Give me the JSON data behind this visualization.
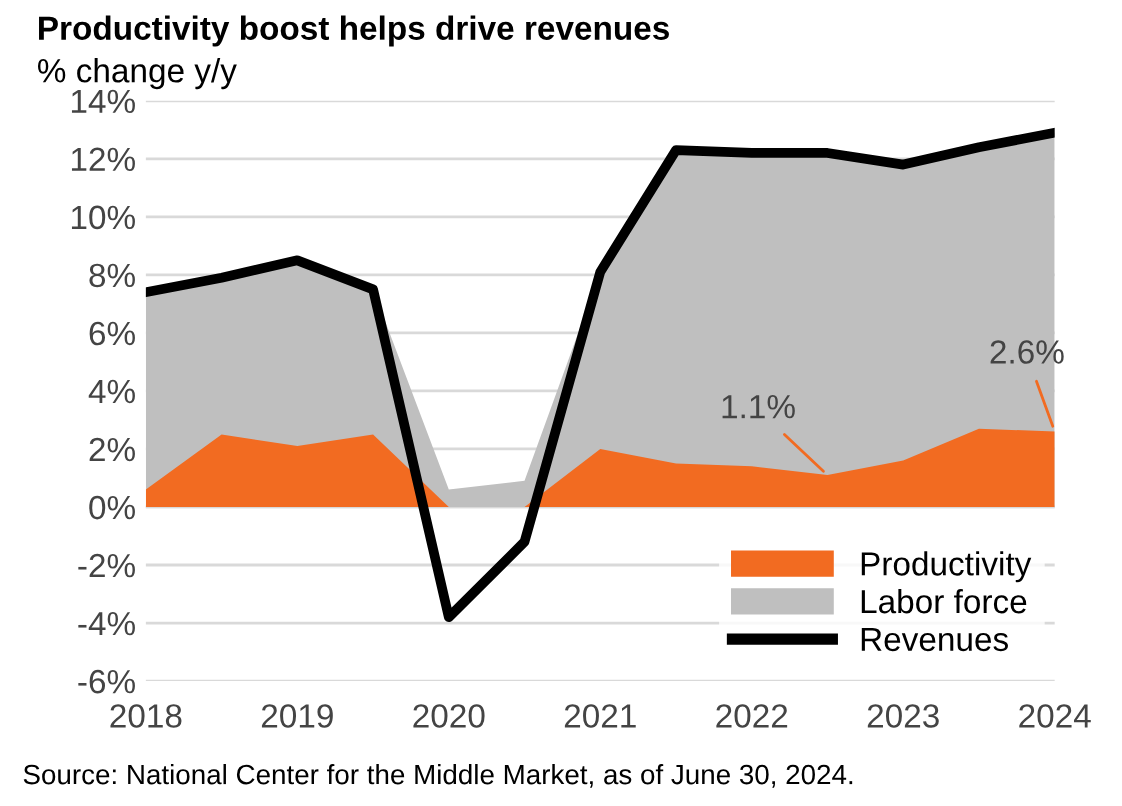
{
  "chart_data": {
    "type": "area",
    "title": "Productivity boost helps drive revenues",
    "ylabel": "% change y/y",
    "x": [
      2018,
      2018.5,
      2019,
      2019.5,
      2020,
      2020.5,
      2021,
      2021.5,
      2022,
      2022.5,
      2023,
      2023.5,
      2024
    ],
    "series": [
      {
        "name": "Productivity",
        "color": "#f26b21",
        "values": [
          0.6,
          2.5,
          2.1,
          2.5,
          0,
          0,
          2.0,
          1.5,
          1.4,
          1.1,
          1.6,
          2.7,
          2.6
        ]
      },
      {
        "name": "Labor force",
        "color": "#bfbfbf",
        "values": [
          7.4,
          7.9,
          8.5,
          7.5,
          0.6,
          0.9,
          8.1,
          12.3,
          12.2,
          12.2,
          11.8,
          12.4,
          12.9
        ]
      },
      {
        "name": "Revenues",
        "type": "line",
        "color": "#000000",
        "values": [
          7.4,
          7.9,
          8.5,
          7.5,
          -3.8,
          -1.2,
          8.1,
          12.3,
          12.2,
          12.2,
          11.8,
          12.4,
          12.9
        ]
      }
    ],
    "xlim": [
      2018,
      2024
    ],
    "ylim": [
      -6,
      14
    ],
    "xticks": [
      2018,
      2019,
      2020,
      2021,
      2022,
      2023,
      2024
    ],
    "yticks": [
      {
        "value": -6,
        "label": "-6%"
      },
      {
        "value": -4,
        "label": "-4%"
      },
      {
        "value": -2,
        "label": "-2%"
      },
      {
        "value": 0,
        "label": "0%"
      },
      {
        "value": 2,
        "label": "2%"
      },
      {
        "value": 4,
        "label": "4%"
      },
      {
        "value": 6,
        "label": "6%"
      },
      {
        "value": 8,
        "label": "8%"
      },
      {
        "value": 10,
        "label": "10%"
      },
      {
        "value": 12,
        "label": "12%"
      },
      {
        "value": 14,
        "label": "14%"
      }
    ],
    "grid": "y",
    "legend": "bottom right",
    "annotations": [
      {
        "text": "1.1%",
        "x": 2022.5,
        "y": 1.1
      },
      {
        "text": "2.6%",
        "x": 2024,
        "y": 2.6
      },
      "Source: National Center for the Middle Market, as of June 30, 2024."
    ]
  }
}
